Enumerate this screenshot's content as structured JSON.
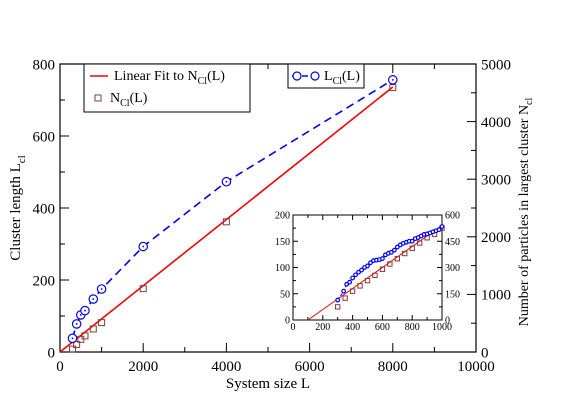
{
  "chart_data": [
    {
      "type": "line",
      "xlabel": "System size L",
      "ylabel": "Cluster length L",
      "ylabel_sub": "cl",
      "ylabel_right": "Number of particles in largest cluster N",
      "ylabel_right_sub": "cl",
      "xlim": [
        0,
        10000
      ],
      "ylim": [
        0,
        800
      ],
      "ylim_right": [
        0,
        5000
      ],
      "xticks": [
        0,
        2000,
        4000,
        6000,
        8000,
        10000
      ],
      "yticks": [
        0,
        200,
        400,
        600,
        800
      ],
      "yticks_right": [
        0,
        1000,
        2000,
        3000,
        4000,
        5000
      ],
      "grid": false,
      "series": [
        {
          "name": "Linear Fit to N",
          "name_sub": "Cl",
          "name_suffix": "(L)",
          "style": "solid",
          "color": "#ff0000",
          "axis": "right",
          "x": [
            0,
            8000
          ],
          "y": [
            0,
            4600
          ]
        },
        {
          "name": "N",
          "name_sub": "Cl",
          "name_suffix": "(L)",
          "style": "markers",
          "marker": "square",
          "color": "#8b3a3a",
          "axis": "right",
          "x": [
            300,
            400,
            500,
            600,
            800,
            1000,
            2000,
            4000,
            8000
          ],
          "y": [
            50,
            130,
            220,
            280,
            400,
            510,
            1100,
            2260,
            4590
          ]
        },
        {
          "name": "L",
          "name_sub": "Cl",
          "name_suffix": "(L)",
          "style": "dashed",
          "marker": "circle",
          "color": "#0000ff",
          "axis": "left",
          "x": [
            300,
            400,
            500,
            600,
            800,
            1000,
            2000,
            4000,
            8000
          ],
          "y": [
            38,
            78,
            103,
            115,
            147,
            175,
            293,
            473,
            756
          ]
        }
      ]
    },
    {
      "type": "line",
      "inset": true,
      "xlim": [
        0,
        1000
      ],
      "ylim": [
        0,
        200
      ],
      "ylim_right": [
        0,
        600
      ],
      "xticks": [
        0,
        200,
        400,
        600,
        800,
        1000
      ],
      "yticks": [
        0,
        50,
        100,
        150,
        200
      ],
      "yticks_right": [
        0,
        150,
        300,
        450,
        600
      ],
      "series": [
        {
          "style": "solid",
          "color": "#ff0000",
          "axis": "right",
          "x": [
            100,
            1000
          ],
          "y": [
            0,
            540
          ]
        },
        {
          "style": "markers",
          "marker": "square",
          "color": "#8b3a3a",
          "axis": "right",
          "x": [
            300,
            350,
            400,
            450,
            500,
            550,
            600,
            650,
            700,
            750,
            800,
            850,
            900,
            950,
            1000
          ],
          "y": [
            75,
            125,
            165,
            195,
            225,
            255,
            290,
            320,
            350,
            380,
            410,
            440,
            470,
            490,
            525
          ]
        },
        {
          "style": "dashed",
          "marker": "circle",
          "color": "#0000ff",
          "axis": "left",
          "x": [
            300,
            340,
            360,
            380,
            400,
            420,
            440,
            460,
            480,
            500,
            520,
            540,
            560,
            580,
            600,
            620,
            640,
            660,
            680,
            700,
            720,
            740,
            760,
            780,
            800,
            820,
            840,
            860,
            880,
            900,
            920,
            940,
            960,
            980,
            1000
          ],
          "y": [
            38,
            55,
            68,
            72,
            80,
            86,
            91,
            95,
            100,
            103,
            109,
            113,
            114,
            115,
            117,
            124,
            127,
            129,
            133,
            139,
            143,
            146,
            148,
            150,
            150,
            155,
            157,
            160,
            163,
            164,
            166,
            168,
            170,
            172,
            178
          ]
        }
      ]
    }
  ]
}
